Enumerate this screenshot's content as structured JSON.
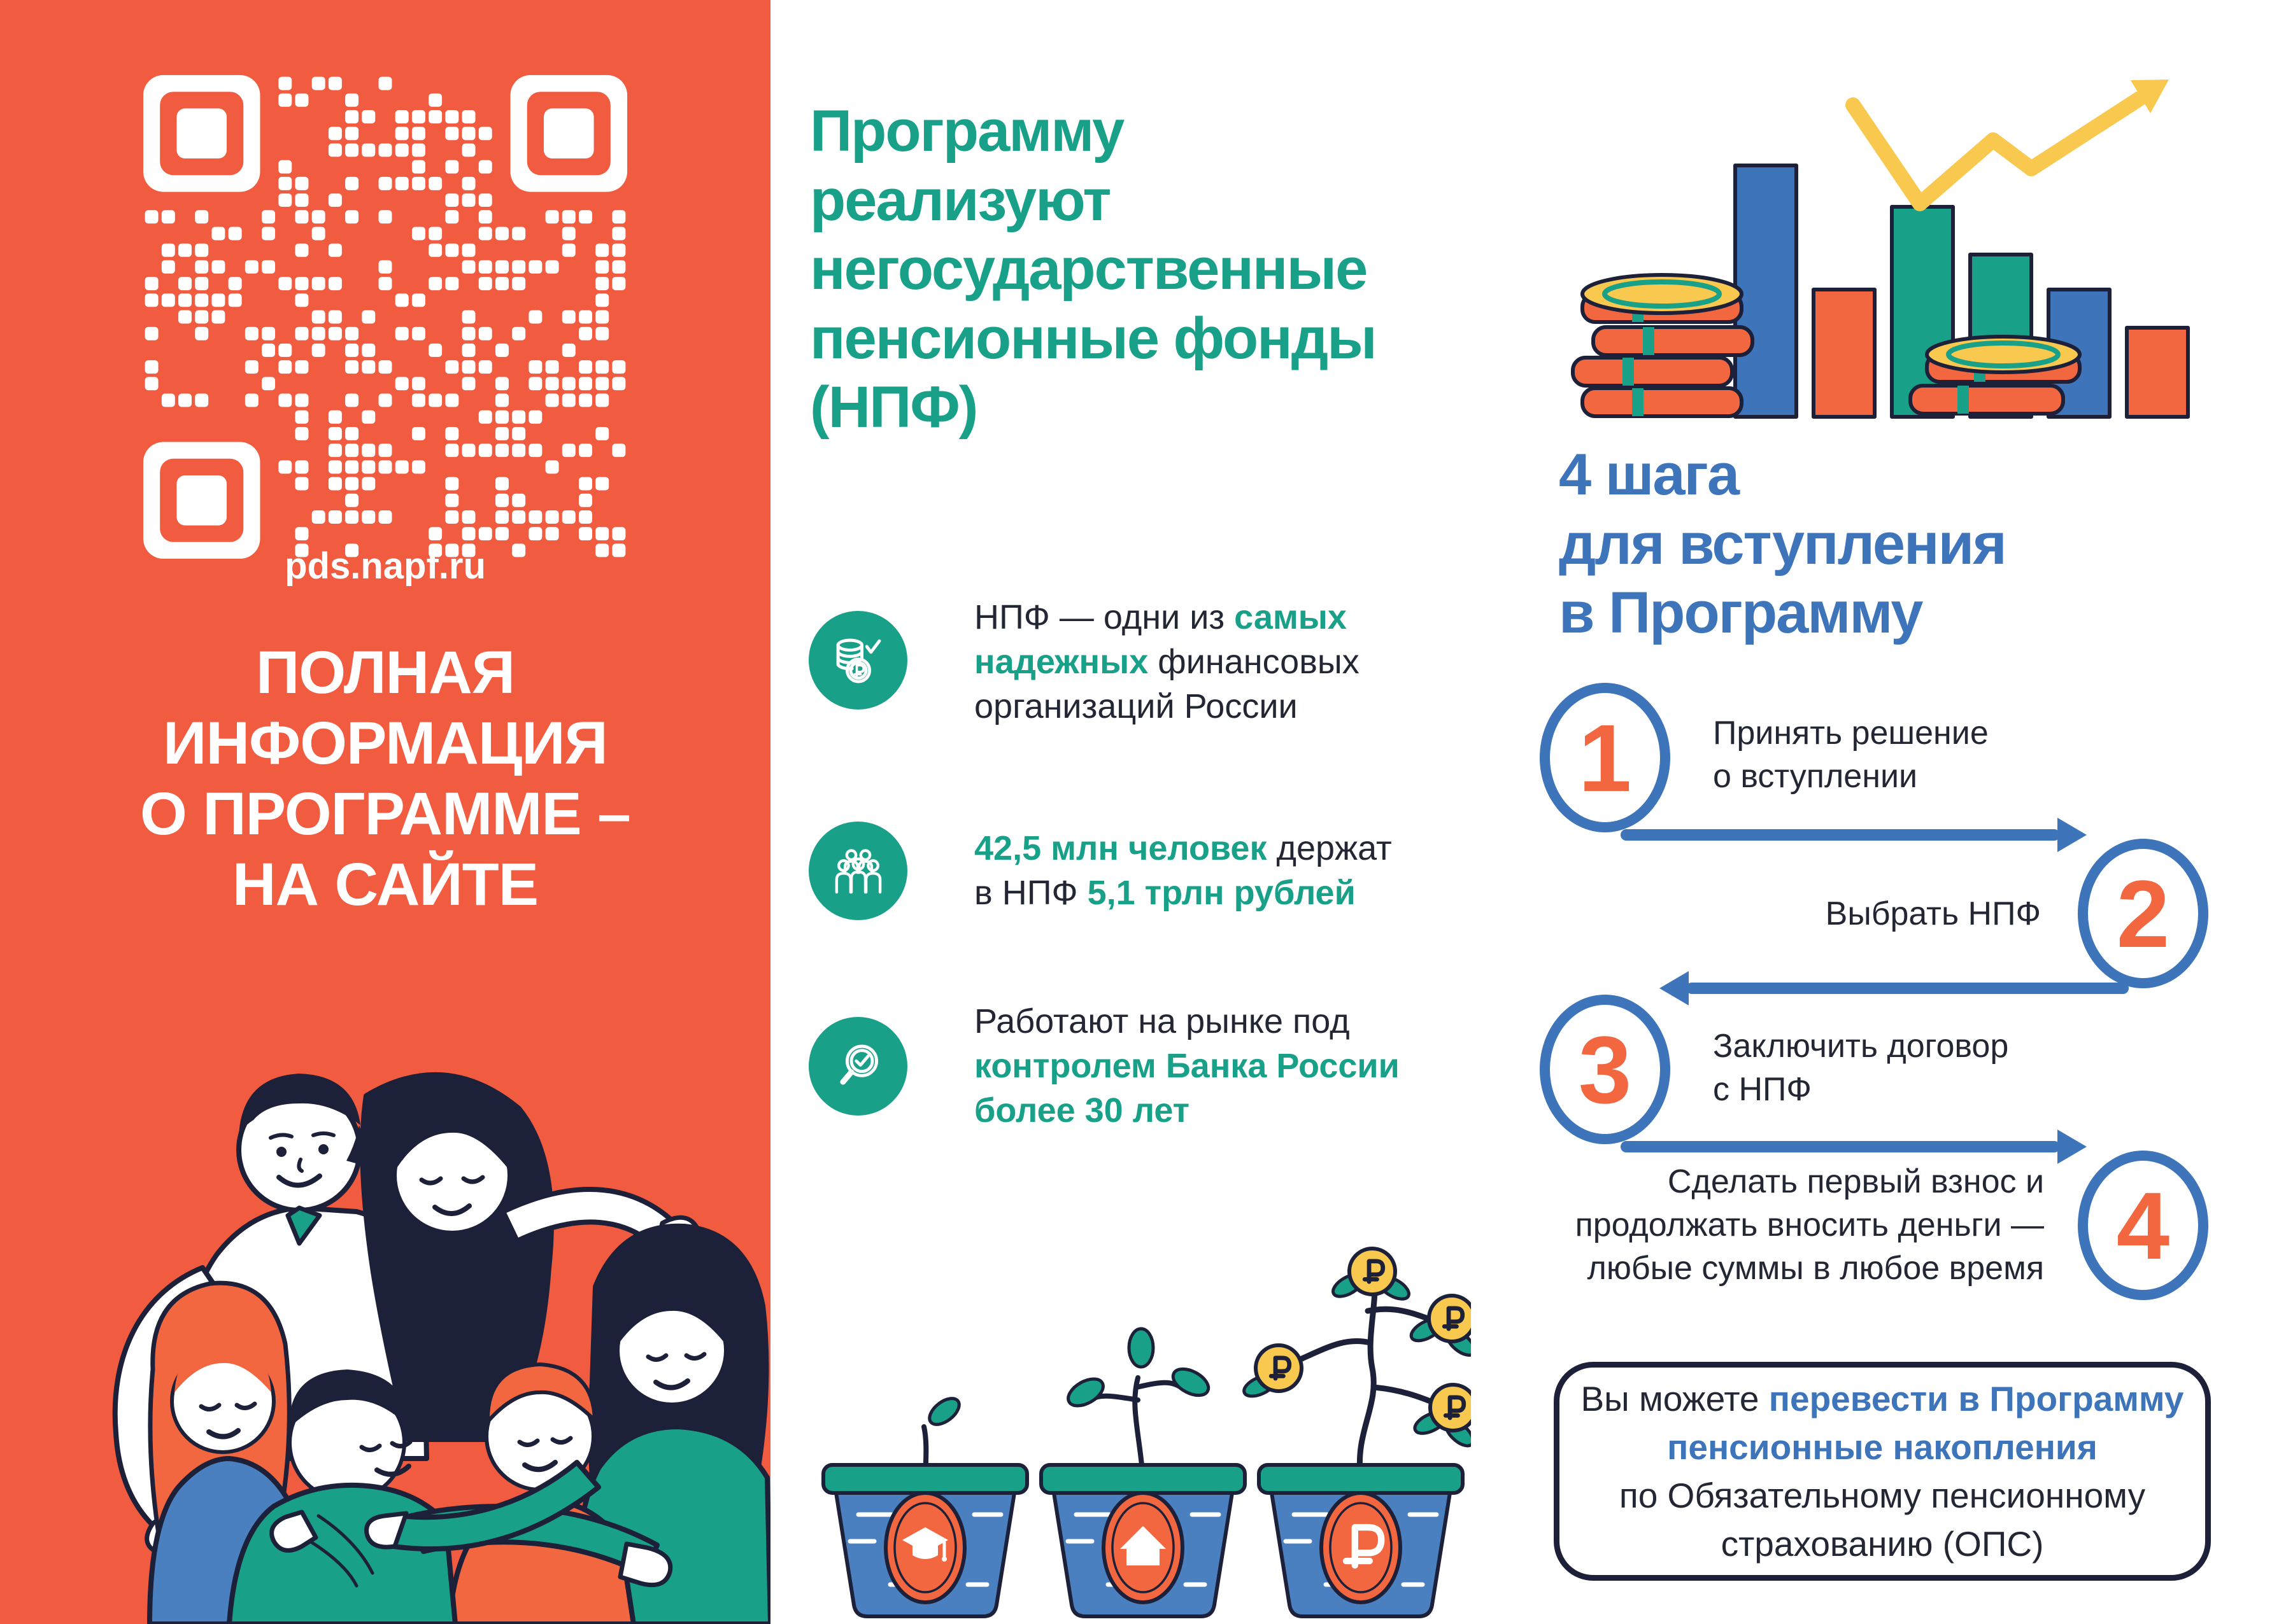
{
  "colors": {
    "orange": "#F15B40",
    "orange2": "#F2673F",
    "teal": "#18A089",
    "blue": "#3D74BA",
    "blue2": "#4B80C0",
    "navy": "#1C2038",
    "dark": "#232733",
    "yellow": "#F9C94F"
  },
  "left_panel": {
    "qr_label": "pds.napf.ru",
    "heading": "ПОЛНАЯ\nИНФОРМАЦИЯ\nО ПРОГРАММЕ –\nНА САЙТЕ"
  },
  "middle": {
    "heading": "Программу\nреализуют\nнегосударственные\nпенсионные фонды\n(НПФ)",
    "benefit1": {
      "l1a": "НПФ — одни из ",
      "l1b": "самых",
      "l2a": "надежных",
      "l2b": " финансовых",
      "l3a": "организаций России"
    },
    "benefit2": {
      "l1a": "42,5 млн человек",
      "l1b": " держат",
      "l2a": "в НПФ ",
      "l2b": "5,1 трлн рублей"
    },
    "benefit3": {
      "l1": "Работают на рынке под",
      "l2": "контролем Банка России",
      "l3": "более 30 лет"
    },
    "icons": [
      "coins-check-icon",
      "people-group-icon",
      "magnifier-check-icon"
    ],
    "pot_badges": [
      "graduation-cap",
      "house",
      "ruble-sign"
    ]
  },
  "right": {
    "heading": "4 шага\nдля вступления\nв Программу",
    "steps": [
      {
        "num": "1",
        "l1": "Принять решение",
        "l2": "о вступлении"
      },
      {
        "num": "2",
        "l1": "Выбрать НПФ",
        "l2": ""
      },
      {
        "num": "3",
        "l1": "Заключить договор",
        "l2": "с НПФ"
      },
      {
        "num": "4",
        "l1": "Сделать первый взнос и",
        "l2": "продолжать вносить деньги —",
        "l3": "любые суммы в любое время"
      }
    ],
    "note": {
      "l1a": "Вы можете ",
      "l1b": "перевести в Программу",
      "l2": "пенсионные накопления",
      "l3": "по Обязательному пенсионному",
      "l4": "страхованию (ОПС)"
    }
  }
}
